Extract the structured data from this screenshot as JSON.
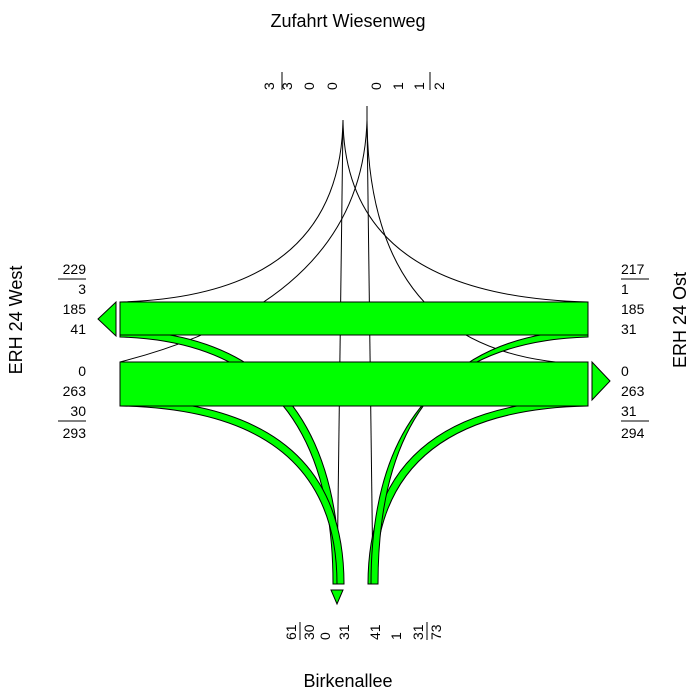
{
  "arms": {
    "north": {
      "name": "Zufahrt Wiesenweg",
      "incoming": [
        "3",
        "3",
        "0",
        "0"
      ],
      "outgoing": [
        "0",
        "1",
        "1",
        "2"
      ]
    },
    "south": {
      "name": "Birkenallee",
      "outgoing": [
        "61",
        "30",
        "0",
        "31"
      ],
      "incoming": [
        "41",
        "1",
        "31",
        "73"
      ]
    },
    "west": {
      "name": "ERH 24 West",
      "outgoing": [
        "229",
        "3",
        "185",
        "41"
      ],
      "incoming": [
        "0",
        "263",
        "30",
        "293"
      ]
    },
    "east": {
      "name": "ERH 24 Ost",
      "incoming": [
        "217",
        "1",
        "185",
        "31"
      ],
      "outgoing": [
        "0",
        "263",
        "31",
        "294"
      ]
    }
  },
  "colors": {
    "flow": "#00ff00",
    "line": "#000000"
  }
}
